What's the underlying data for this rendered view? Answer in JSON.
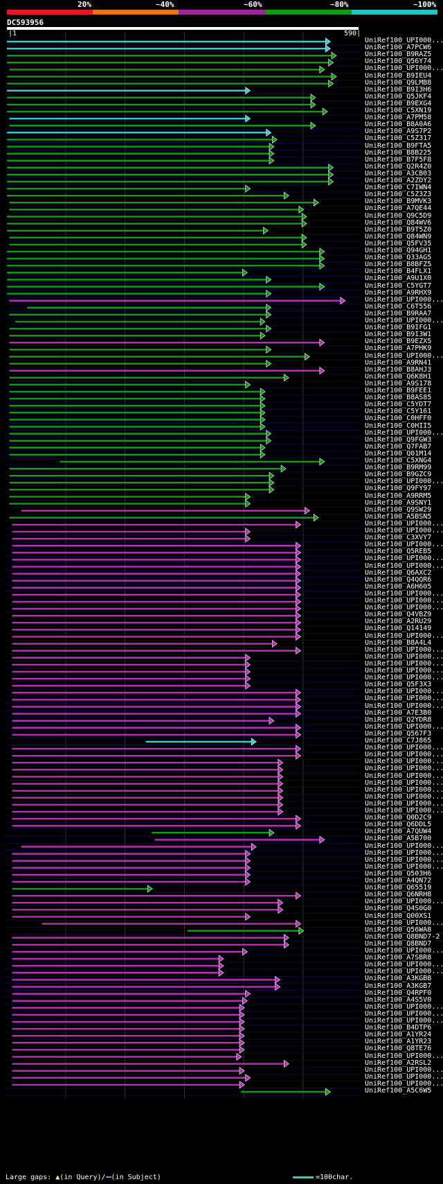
{
  "header": {
    "percent_labels": [
      "20%",
      "~40%",
      "~60%",
      "~80%",
      "~100%"
    ],
    "color_segments": [
      "#e8162b",
      "#ee7611",
      "#a1239b",
      "#119a11",
      "#25c2c2"
    ],
    "query_id": "DC593956",
    "query_start": "1",
    "query_end": "590"
  },
  "chart_data": {
    "type": "alignment-overview",
    "title": "DC593956",
    "query_length": 590,
    "x_range": [
      1,
      590
    ],
    "identity_colors": {
      "green": "#119a11",
      "magenta": "#b82bb2",
      "cyan": "#33cccc"
    },
    "hits": [
      {
        "label": "UniRef100_UPI000...",
        "start": 1,
        "end": 545,
        "color": "cyan"
      },
      {
        "label": "UniRef100_A7PCW6",
        "start": 1,
        "end": 545,
        "color": "cyan"
      },
      {
        "label": "UniRef100_B9RAZ5",
        "start": 1,
        "end": 555,
        "color": "green"
      },
      {
        "label": "UniRef100_Q56Y74",
        "start": 1,
        "end": 550,
        "color": "green"
      },
      {
        "label": "UniRef100_UPI000...",
        "start": 5,
        "end": 535,
        "color": "green"
      },
      {
        "label": "UniRef100_B9IEU4",
        "start": 1,
        "end": 555,
        "color": "green"
      },
      {
        "label": "UniRef100_Q9LMB8",
        "start": 1,
        "end": 550,
        "color": "green"
      },
      {
        "label": "UniRef100_B9I3H6",
        "start": 1,
        "end": 410,
        "color": "cyan"
      },
      {
        "label": "UniRef100_Q5JKF4",
        "start": 1,
        "end": 520,
        "color": "green"
      },
      {
        "label": "UniRef100_B9EXG4",
        "start": 1,
        "end": 520,
        "color": "green"
      },
      {
        "label": "UniRef100_C5XN19",
        "start": 1,
        "end": 540,
        "color": "green"
      },
      {
        "label": "UniRef100_A7PM58",
        "start": 5,
        "end": 410,
        "color": "cyan"
      },
      {
        "label": "UniRef100_B8A0A6",
        "start": 5,
        "end": 520,
        "color": "green"
      },
      {
        "label": "UniRef100_A9S7P2",
        "start": 1,
        "end": 445,
        "color": "cyan"
      },
      {
        "label": "UniRef100_C5Z317",
        "start": 1,
        "end": 455,
        "color": "green"
      },
      {
        "label": "UniRef100_B9FTA5",
        "start": 1,
        "end": 450,
        "color": "green"
      },
      {
        "label": "UniRef100_B8B225",
        "start": 1,
        "end": 450,
        "color": "green"
      },
      {
        "label": "UniRef100_B7F5F8",
        "start": 1,
        "end": 450,
        "color": "green"
      },
      {
        "label": "UniRef100_Q2R4Z0",
        "start": 1,
        "end": 550,
        "color": "green"
      },
      {
        "label": "UniRef100_A3CB03",
        "start": 1,
        "end": 550,
        "color": "green"
      },
      {
        "label": "UniRef100_A2ZDY2",
        "start": 1,
        "end": 550,
        "color": "green"
      },
      {
        "label": "UniRef100_C7IWN4",
        "start": 1,
        "end": 410,
        "color": "green"
      },
      {
        "label": "UniRef100_C5Z3Z3",
        "start": 1,
        "end": 475,
        "color": "green"
      },
      {
        "label": "UniRef100_B9MVK3",
        "start": 5,
        "end": 525,
        "color": "green"
      },
      {
        "label": "UniRef100_A7QE44",
        "start": 5,
        "end": 500,
        "color": "green"
      },
      {
        "label": "UniRef100_Q9C5D9",
        "start": 1,
        "end": 505,
        "color": "green"
      },
      {
        "label": "UniRef100_Q84WV6",
        "start": 1,
        "end": 505,
        "color": "green"
      },
      {
        "label": "UniRef100_B9T5Z0",
        "start": 1,
        "end": 440,
        "color": "green"
      },
      {
        "label": "UniRef100_Q84WN9",
        "start": 5,
        "end": 505,
        "color": "green"
      },
      {
        "label": "UniRef100_Q5FV35",
        "start": 5,
        "end": 505,
        "color": "green"
      },
      {
        "label": "UniRef100_Q94GH1",
        "start": 1,
        "end": 535,
        "color": "green"
      },
      {
        "label": "UniRef100_Q33AG5",
        "start": 1,
        "end": 535,
        "color": "green"
      },
      {
        "label": "UniRef100_B8BFZ5",
        "start": 1,
        "end": 535,
        "color": "green"
      },
      {
        "label": "UniRef100_B4FLX1",
        "start": 1,
        "end": 405,
        "color": "green"
      },
      {
        "label": "UniRef100_A9U1X0",
        "start": 1,
        "end": 445,
        "color": "green"
      },
      {
        "label": "UniRef100_C5YGT7",
        "start": 1,
        "end": 535,
        "color": "green"
      },
      {
        "label": "UniRef100_A9RHX9",
        "start": 1,
        "end": 445,
        "color": "green"
      },
      {
        "label": "UniRef100_UPI000...",
        "start": 5,
        "end": 570,
        "color": "magenta"
      },
      {
        "label": "UniRef100_C6T556",
        "start": 35,
        "end": 445,
        "color": "green"
      },
      {
        "label": "UniRef100_B9RAA7",
        "start": 5,
        "end": 445,
        "color": "green"
      },
      {
        "label": "UniRef100_UPI000...",
        "start": 15,
        "end": 435,
        "color": "green"
      },
      {
        "label": "UniRef100_B9IFG1",
        "start": 5,
        "end": 445,
        "color": "green"
      },
      {
        "label": "UniRef100_B9I3W1",
        "start": 5,
        "end": 435,
        "color": "green"
      },
      {
        "label": "UniRef100_B9EZX5",
        "start": 5,
        "end": 535,
        "color": "magenta"
      },
      {
        "label": "UniRef100_A7PHK9",
        "start": 5,
        "end": 445,
        "color": "green"
      },
      {
        "label": "UniRef100_UPI000...",
        "start": 5,
        "end": 510,
        "color": "green"
      },
      {
        "label": "UniRef100_A9RN41",
        "start": 5,
        "end": 445,
        "color": "green"
      },
      {
        "label": "UniRef100_B8AHJ3",
        "start": 5,
        "end": 535,
        "color": "magenta"
      },
      {
        "label": "UniRef100_Q6K8H1",
        "start": 5,
        "end": 475,
        "color": "green"
      },
      {
        "label": "UniRef100_A9S178",
        "start": 5,
        "end": 410,
        "color": "green"
      },
      {
        "label": "UniRef100_B9FEE1",
        "start": 5,
        "end": 435,
        "color": "green"
      },
      {
        "label": "UniRef100_B8AS85",
        "start": 5,
        "end": 435,
        "color": "green"
      },
      {
        "label": "UniRef100_C5YDT7",
        "start": 5,
        "end": 435,
        "color": "green"
      },
      {
        "label": "UniRef100_C5Y161",
        "start": 5,
        "end": 435,
        "color": "green"
      },
      {
        "label": "UniRef100_C0HFF0",
        "start": 5,
        "end": 435,
        "color": "green"
      },
      {
        "label": "UniRef100_C0HII5",
        "start": 5,
        "end": 435,
        "color": "green"
      },
      {
        "label": "UniRef100_UPI000...",
        "start": 5,
        "end": 445,
        "color": "green"
      },
      {
        "label": "UniRef100_Q9FGW3",
        "start": 5,
        "end": 445,
        "color": "green"
      },
      {
        "label": "UniRef100_Q7FAB7",
        "start": 5,
        "end": 435,
        "color": "green"
      },
      {
        "label": "UniRef100_Q01M14",
        "start": 5,
        "end": 435,
        "color": "green"
      },
      {
        "label": "UniRef100_C5XNG4",
        "start": 90,
        "end": 535,
        "color": "green"
      },
      {
        "label": "UniRef100_B9RM99",
        "start": 5,
        "end": 470,
        "color": "green"
      },
      {
        "label": "UniRef100_B9GZC9",
        "start": 5,
        "end": 450,
        "color": "green"
      },
      {
        "label": "UniRef100_UPI000...",
        "start": 5,
        "end": 450,
        "color": "green"
      },
      {
        "label": "UniRef100_Q9FY97",
        "start": 5,
        "end": 450,
        "color": "green"
      },
      {
        "label": "UniRef100_A9RRM5",
        "start": 5,
        "end": 410,
        "color": "green"
      },
      {
        "label": "UniRef100_A9SNY1",
        "start": 5,
        "end": 410,
        "color": "green"
      },
      {
        "label": "UniRef100_Q9SW29",
        "start": 25,
        "end": 510,
        "color": "magenta"
      },
      {
        "label": "UniRef100_A5BSN5",
        "start": 5,
        "end": 525,
        "color": "green"
      },
      {
        "label": "UniRef100_UPI000...",
        "start": 10,
        "end": 495,
        "color": "magenta"
      },
      {
        "label": "UniRef100_UPI000...",
        "start": 10,
        "end": 410,
        "color": "magenta"
      },
      {
        "label": "UniRef100_C3XVY7",
        "start": 10,
        "end": 410,
        "color": "magenta"
      },
      {
        "label": "UniRef100_UPI000...",
        "start": 10,
        "end": 495,
        "color": "magenta"
      },
      {
        "label": "UniRef100_Q5REB5",
        "start": 10,
        "end": 495,
        "color": "magenta"
      },
      {
        "label": "UniRef100_UPI000...",
        "start": 10,
        "end": 495,
        "color": "magenta"
      },
      {
        "label": "UniRef100_UPI000...",
        "start": 10,
        "end": 495,
        "color": "magenta"
      },
      {
        "label": "UniRef100_Q6AXC2",
        "start": 10,
        "end": 495,
        "color": "magenta"
      },
      {
        "label": "UniRef100_Q4QQR6",
        "start": 10,
        "end": 495,
        "color": "magenta"
      },
      {
        "label": "UniRef100_A6H605",
        "start": 10,
        "end": 495,
        "color": "magenta"
      },
      {
        "label": "UniRef100_UPI000...",
        "start": 10,
        "end": 495,
        "color": "magenta"
      },
      {
        "label": "UniRef100_UPI000...",
        "start": 10,
        "end": 495,
        "color": "magenta"
      },
      {
        "label": "UniRef100_UPI000...",
        "start": 10,
        "end": 495,
        "color": "magenta"
      },
      {
        "label": "UniRef100_Q4VBZ9",
        "start": 10,
        "end": 495,
        "color": "magenta"
      },
      {
        "label": "UniRef100_A2RU29",
        "start": 10,
        "end": 495,
        "color": "magenta"
      },
      {
        "label": "UniRef100_Q14149",
        "start": 10,
        "end": 495,
        "color": "magenta"
      },
      {
        "label": "UniRef100_UPI000...",
        "start": 10,
        "end": 495,
        "color": "magenta"
      },
      {
        "label": "UniRef100_B8A4L4",
        "start": 10,
        "end": 455,
        "color": "magenta"
      },
      {
        "label": "UniRef100_UPI000...",
        "start": 10,
        "end": 495,
        "color": "magenta"
      },
      {
        "label": "UniRef100_UPI000...",
        "start": 10,
        "end": 410,
        "color": "magenta"
      },
      {
        "label": "UniRef100_UPI000...",
        "start": 10,
        "end": 410,
        "color": "magenta"
      },
      {
        "label": "UniRef100_UPI000...",
        "start": 10,
        "end": 410,
        "color": "magenta"
      },
      {
        "label": "UniRef100_UPI000...",
        "start": 10,
        "end": 410,
        "color": "magenta"
      },
      {
        "label": "UniRef100_Q5F3X3",
        "start": 10,
        "end": 410,
        "color": "magenta"
      },
      {
        "label": "UniRef100_UPI000...",
        "start": 10,
        "end": 495,
        "color": "magenta"
      },
      {
        "label": "UniRef100_UPI000...",
        "start": 10,
        "end": 495,
        "color": "magenta"
      },
      {
        "label": "UniRef100_UPI000...",
        "start": 10,
        "end": 495,
        "color": "magenta"
      },
      {
        "label": "UniRef100_A7E3B0",
        "start": 10,
        "end": 495,
        "color": "magenta"
      },
      {
        "label": "UniRef100_Q2YDR8",
        "start": 10,
        "end": 450,
        "color": "magenta"
      },
      {
        "label": "UniRef100_UPI000...",
        "start": 10,
        "end": 495,
        "color": "magenta"
      },
      {
        "label": "UniRef100_Q567F3",
        "start": 10,
        "end": 495,
        "color": "magenta"
      },
      {
        "label": "UniRef100_C7J865",
        "start": 235,
        "end": 420,
        "color": "cyan"
      },
      {
        "label": "UniRef100_UPI000...",
        "start": 10,
        "end": 495,
        "color": "magenta"
      },
      {
        "label": "UniRef100_UPI000...",
        "start": 10,
        "end": 495,
        "color": "magenta"
      },
      {
        "label": "UniRef100_UPI000...",
        "start": 10,
        "end": 465,
        "color": "magenta"
      },
      {
        "label": "UniRef100_UPI000...",
        "start": 10,
        "end": 465,
        "color": "magenta"
      },
      {
        "label": "UniRef100_UPI000...",
        "start": 10,
        "end": 465,
        "color": "magenta"
      },
      {
        "label": "UniRef100_UPI000...",
        "start": 10,
        "end": 465,
        "color": "magenta"
      },
      {
        "label": "UniRef100_UPI000...",
        "start": 10,
        "end": 465,
        "color": "magenta"
      },
      {
        "label": "UniRef100_UPI000...",
        "start": 10,
        "end": 465,
        "color": "magenta"
      },
      {
        "label": "UniRef100_UPI000...",
        "start": 10,
        "end": 465,
        "color": "magenta"
      },
      {
        "label": "UniRef100_UPI000...",
        "start": 10,
        "end": 465,
        "color": "magenta"
      },
      {
        "label": "UniRef100_Q0D2C9",
        "start": 10,
        "end": 495,
        "color": "magenta"
      },
      {
        "label": "UniRef100_Q6DDL5",
        "start": 10,
        "end": 495,
        "color": "magenta"
      },
      {
        "label": "UniRef100_A7QUW4",
        "start": 245,
        "end": 450,
        "color": "green"
      },
      {
        "label": "UniRef100_A5B700",
        "start": 250,
        "end": 535,
        "color": "magenta"
      },
      {
        "label": "UniRef100_UPI000...",
        "start": 25,
        "end": 420,
        "color": "magenta"
      },
      {
        "label": "UniRef100_UPI000...",
        "start": 10,
        "end": 410,
        "color": "magenta"
      },
      {
        "label": "UniRef100_UPI000...",
        "start": 10,
        "end": 410,
        "color": "magenta"
      },
      {
        "label": "UniRef100_UPI000...",
        "start": 10,
        "end": 410,
        "color": "magenta"
      },
      {
        "label": "UniRef100_Q503H6",
        "start": 10,
        "end": 410,
        "color": "magenta"
      },
      {
        "label": "UniRef100_A4QN72",
        "start": 10,
        "end": 410,
        "color": "magenta"
      },
      {
        "label": "UniRef100_Q65519",
        "start": 10,
        "end": 245,
        "color": "green"
      },
      {
        "label": "UniRef100_Q6NRH8",
        "start": 10,
        "end": 495,
        "color": "magenta"
      },
      {
        "label": "UniRef100_UPI000...",
        "start": 10,
        "end": 465,
        "color": "magenta"
      },
      {
        "label": "UniRef100_Q4S0G0",
        "start": 10,
        "end": 465,
        "color": "magenta"
      },
      {
        "label": "UniRef100_Q00XS1",
        "start": 10,
        "end": 410,
        "color": "magenta"
      },
      {
        "label": "UniRef100_UPI000...",
        "start": 60,
        "end": 495,
        "color": "magenta"
      },
      {
        "label": "UniRef100_Q56WA8",
        "start": 305,
        "end": 500,
        "color": "green"
      },
      {
        "label": "UniRef100_Q8BND7-2",
        "start": 10,
        "end": 475,
        "color": "magenta"
      },
      {
        "label": "UniRef100_Q8BND7",
        "start": 10,
        "end": 475,
        "color": "magenta"
      },
      {
        "label": "UniRef100_UPI000...",
        "start": 10,
        "end": 405,
        "color": "magenta"
      },
      {
        "label": "UniRef100_A7SBR8",
        "start": 10,
        "end": 365,
        "color": "magenta"
      },
      {
        "label": "UniRef100_UPI000...",
        "start": 10,
        "end": 365,
        "color": "magenta"
      },
      {
        "label": "UniRef100_UPI000...",
        "start": 10,
        "end": 365,
        "color": "magenta"
      },
      {
        "label": "UniRef100_A3KGB8",
        "start": 10,
        "end": 460,
        "color": "magenta"
      },
      {
        "label": "UniRef100_A3KGB7",
        "start": 10,
        "end": 460,
        "color": "magenta"
      },
      {
        "label": "UniRef100_Q4RPF0",
        "start": 10,
        "end": 410,
        "color": "magenta"
      },
      {
        "label": "UniRef100_A4S5V0",
        "start": 10,
        "end": 405,
        "color": "magenta"
      },
      {
        "label": "UniRef100_UPI000...",
        "start": 10,
        "end": 400,
        "color": "magenta"
      },
      {
        "label": "UniRef100_UPI000...",
        "start": 10,
        "end": 400,
        "color": "magenta"
      },
      {
        "label": "UniRef100_UPI000...",
        "start": 10,
        "end": 400,
        "color": "magenta"
      },
      {
        "label": "UniRef100_B4DTP6",
        "start": 10,
        "end": 400,
        "color": "magenta"
      },
      {
        "label": "UniRef100_A1YR24",
        "start": 10,
        "end": 400,
        "color": "magenta"
      },
      {
        "label": "UniRef100_A1YR23",
        "start": 10,
        "end": 400,
        "color": "magenta"
      },
      {
        "label": "UniRef100_Q8TE76",
        "start": 10,
        "end": 400,
        "color": "magenta"
      },
      {
        "label": "UniRef100_UPI000...",
        "start": 10,
        "end": 395,
        "color": "magenta"
      },
      {
        "label": "UniRef100_A2RSL2",
        "start": 10,
        "end": 475,
        "color": "magenta"
      },
      {
        "label": "UniRef100_UPI000...",
        "start": 10,
        "end": 400,
        "color": "magenta"
      },
      {
        "label": "UniRef100_UPI000...",
        "start": 10,
        "end": 410,
        "color": "magenta"
      },
      {
        "label": "UniRef100_UPI000...",
        "start": 10,
        "end": 400,
        "color": "magenta"
      },
      {
        "label": "UniRef100_A5C6W5",
        "start": 395,
        "end": 545,
        "color": "green"
      }
    ]
  },
  "footer": {
    "large_gaps_label": "Large gaps:",
    "in_query_label": "(in Query)/",
    "in_subject_label": "(in Subject)",
    "scale_label": "=100char."
  }
}
